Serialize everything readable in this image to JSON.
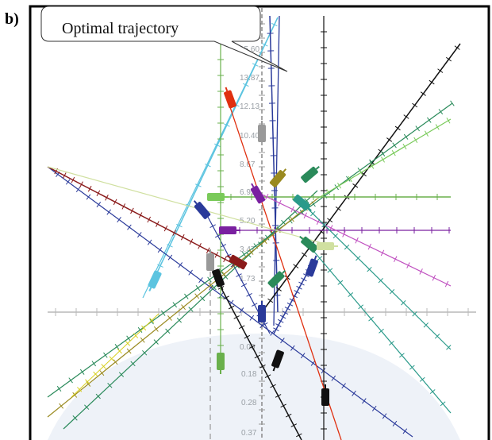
{
  "panel_label": "b)",
  "callout": {
    "text": "Optimal trajectory"
  },
  "axis": {
    "tick_labels": [
      "15.60",
      "13.87",
      "12.13",
      "10.40",
      "8.67",
      "6.93",
      "5.20",
      "3.47",
      "1.73",
      "0.00",
      "0.18",
      "0.28",
      "0.37"
    ]
  },
  "colors": {
    "frame": "#000000",
    "axis": "#b8b8b8",
    "ground_shade": "#eef2f8",
    "cyan": "#5cc4e0",
    "navy": "#2a3a9a",
    "black": "#111111",
    "red": "#e03010",
    "green": "#6ab04c",
    "darkgreen": "#2a8a5a",
    "olive": "#9a8a20",
    "purple": "#7a20a0",
    "magenta": "#c050c0",
    "teal": "#2a9a8a",
    "lightgreen": "#7aca5a",
    "maroon": "#8a1a1a",
    "gray": "#999999",
    "yellow": "#d8d020",
    "pale": "#d0e0a0"
  }
}
